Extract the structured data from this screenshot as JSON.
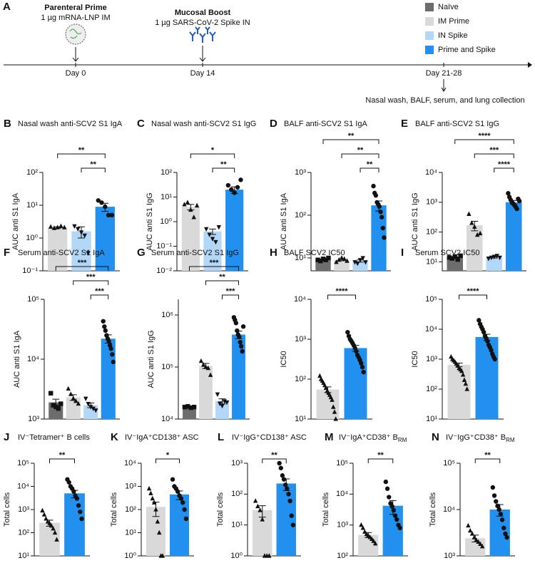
{
  "schematic": {
    "panel": "A",
    "prime": {
      "title": "Parenteral Prime",
      "detail": "1 µg mRNA-LNP IM",
      "day": "Day 0"
    },
    "boost": {
      "title": "Mucosal Boost",
      "detail": "1 µg SARS-CoV-2 Spike IN",
      "day": "Day 14"
    },
    "collection": {
      "day": "Day 21-28",
      "detail": "Nasal wash, BALF, serum, and lung collection"
    },
    "legend": [
      {
        "name": "Naïve",
        "color": "#6d6d6d"
      },
      {
        "name": "IM Prime",
        "color": "#d9d9d9"
      },
      {
        "name": "IN Spike",
        "color": "#b3d7f7"
      },
      {
        "name": "Prime and Spike",
        "color": "#2190ee"
      }
    ]
  },
  "chart_data": [
    {
      "type": "bar",
      "panel": "B",
      "title": "Nasal wash anti-SCV2 S1 IgA",
      "ylabel": "AUC anti S1 IgA",
      "log_y": true,
      "ylim": [
        0.1,
        100
      ],
      "yticks": [
        {
          "value": 0.1,
          "label": "10⁻¹"
        },
        {
          "value": 1,
          "label": "10⁰"
        },
        {
          "value": 10,
          "label": "10¹"
        },
        {
          "value": 100,
          "label": "10²"
        }
      ],
      "colors": [
        "#d9d9d9",
        "#b3d7f7",
        "#2190ee"
      ],
      "markers": [
        "triangle",
        "triangle-down",
        "circle"
      ],
      "values": [
        2.1,
        1.6,
        9
      ],
      "errors": [
        0.1,
        0.6,
        2.5
      ],
      "points": [
        [
          2.2,
          2.0,
          2.1,
          2.3,
          2.1
        ],
        [
          2.3,
          1.9,
          1.5,
          1.2,
          0.35
        ],
        [
          14,
          12,
          9,
          5,
          5
        ]
      ],
      "significance": [
        {
          "between": [
            0,
            2
          ],
          "label": "**"
        },
        {
          "between": [
            1,
            2
          ],
          "label": "**"
        }
      ]
    },
    {
      "type": "bar",
      "panel": "C",
      "title": "Nasal wash anti-SCV2 S1 IgG",
      "ylabel": "AUC anti S1 IgG",
      "log_y": true,
      "ylim": [
        0.01,
        100
      ],
      "yticks": [
        {
          "value": 0.01,
          "label": "10⁻²"
        },
        {
          "value": 0.1,
          "label": "10⁻¹"
        },
        {
          "value": 1,
          "label": "10⁰"
        },
        {
          "value": 10,
          "label": "10¹"
        },
        {
          "value": 100,
          "label": "10²"
        }
      ],
      "colors": [
        "#d9d9d9",
        "#b3d7f7",
        "#2190ee"
      ],
      "markers": [
        "triangle",
        "triangle-down",
        "circle"
      ],
      "values": [
        4,
        0.4,
        20
      ],
      "errors": [
        1.0,
        0.1,
        6
      ],
      "points": [
        [
          5,
          6,
          3,
          1.5,
          4.5
        ],
        [
          0.5,
          0.3,
          0.2,
          0.15,
          0.6
        ],
        [
          30,
          20,
          15,
          25,
          50
        ]
      ],
      "significance": [
        {
          "between": [
            0,
            2
          ],
          "label": "*"
        },
        {
          "between": [
            1,
            2
          ],
          "label": "**"
        }
      ]
    },
    {
      "type": "bar",
      "panel": "D",
      "title": "BALF anti-SCV2 S1 IgA",
      "ylabel": "AUC anti S1 IgA",
      "log_y": true,
      "ylim": [
        5,
        1000
      ],
      "yticks": [
        {
          "value": 10,
          "label": "10¹"
        },
        {
          "value": 100,
          "label": "10²"
        },
        {
          "value": 1000,
          "label": "10³"
        }
      ],
      "colors": [
        "#6d6d6d",
        "#d9d9d9",
        "#b3d7f7",
        "#2190ee"
      ],
      "markers": [
        "square",
        "triangle",
        "triangle-down",
        "circle"
      ],
      "values": [
        9,
        9,
        8.5,
        170
      ],
      "errors": [
        0.3,
        0.4,
        0.5,
        45
      ],
      "points": [
        [
          9,
          8.5,
          9.5,
          9,
          10
        ],
        [
          8,
          9,
          10,
          9.5,
          8.5
        ],
        [
          8,
          7.5,
          9,
          10,
          8
        ],
        [
          480,
          330,
          290,
          200,
          180,
          160,
          120,
          90,
          50,
          30
        ]
      ],
      "significance": [
        {
          "between": [
            0,
            3
          ],
          "label": "**"
        },
        {
          "between": [
            1,
            3
          ],
          "label": "**"
        },
        {
          "between": [
            2,
            3
          ],
          "label": "**"
        }
      ]
    },
    {
      "type": "bar",
      "panel": "E",
      "title": "BALF anti-SCV2 S1 IgG",
      "ylabel": "AUC anti S1 IgG",
      "log_y": true,
      "ylim": [
        5,
        10000
      ],
      "yticks": [
        {
          "value": 10,
          "label": "10¹"
        },
        {
          "value": 100,
          "label": "10²"
        },
        {
          "value": 1000,
          "label": "10³"
        },
        {
          "value": 10000,
          "label": "10⁴"
        }
      ],
      "colors": [
        "#6d6d6d",
        "#d9d9d9",
        "#b3d7f7",
        "#2190ee"
      ],
      "markers": [
        "square",
        "triangle",
        "triangle-down",
        "circle"
      ],
      "values": [
        14,
        170,
        14,
        1000
      ],
      "errors": [
        0.6,
        60,
        0.6,
        150
      ],
      "points": [
        [
          14,
          13,
          15,
          12,
          16
        ],
        [
          400,
          200,
          150,
          80,
          90
        ],
        [
          13,
          14,
          15,
          16,
          14
        ],
        [
          2000,
          1500,
          1200,
          1000,
          900,
          800,
          700,
          600,
          1300,
          1100
        ]
      ],
      "significance": [
        {
          "between": [
            0,
            3
          ],
          "label": "****"
        },
        {
          "between": [
            1,
            3
          ],
          "label": "***"
        },
        {
          "between": [
            2,
            3
          ],
          "label": "****"
        }
      ]
    },
    {
      "type": "bar",
      "panel": "F",
      "title": "Serum anti-SCV2 S1 IgA",
      "ylabel": "AUC anti S1 IgA",
      "log_y": true,
      "ylim": [
        1000,
        100000
      ],
      "yticks": [
        {
          "value": 1000,
          "label": "10³"
        },
        {
          "value": 10000,
          "label": "10⁴"
        },
        {
          "value": 100000,
          "label": "10⁵"
        }
      ],
      "colors": [
        "#6d6d6d",
        "#d9d9d9",
        "#b3d7f7",
        "#2190ee"
      ],
      "markers": [
        "square",
        "triangle",
        "triangle-down",
        "circle"
      ],
      "values": [
        1900,
        2300,
        1700,
        22000
      ],
      "errors": [
        250,
        250,
        150,
        3500
      ],
      "points": [
        [
          2700,
          1700,
          1600,
          1500,
          1800
        ],
        [
          3200,
          2600,
          2200,
          2000,
          1800
        ],
        [
          2200,
          1800,
          1600,
          1500,
          1400
        ],
        [
          43000,
          35000,
          30000,
          25000,
          22000,
          20000,
          17000,
          15000,
          12000,
          9000
        ]
      ],
      "significance": [
        {
          "between": [
            0,
            3
          ],
          "label": "***"
        },
        {
          "between": [
            1,
            3
          ],
          "label": "***"
        },
        {
          "between": [
            2,
            3
          ],
          "label": "***"
        }
      ]
    },
    {
      "type": "bar",
      "panel": "G",
      "title": "Serum anti-SCV2 S1 IgG",
      "ylabel": "AUC anti S1 IgG",
      "log_y": true,
      "ylim": [
        10000,
        2000000
      ],
      "yticks": [
        {
          "value": 10000,
          "label": "10⁴"
        },
        {
          "value": 100000,
          "label": "10⁵"
        },
        {
          "value": 1000000,
          "label": "10⁶"
        }
      ],
      "colors": [
        "#6d6d6d",
        "#d9d9d9",
        "#b3d7f7",
        "#2190ee"
      ],
      "markers": [
        "square",
        "triangle",
        "triangle-down",
        "circle"
      ],
      "values": [
        17000,
        105000,
        22000,
        420000
      ],
      "errors": [
        200,
        12000,
        2500,
        70000
      ],
      "points": [
        [
          17000,
          17500,
          16500,
          17000
        ],
        [
          130000,
          110000,
          100000,
          95000,
          70000
        ],
        [
          30000,
          20000,
          18000,
          22000,
          21000
        ],
        [
          900000,
          800000,
          700000,
          500000,
          420000,
          380000,
          300000,
          250000,
          200000,
          600000
        ]
      ],
      "significance": [
        {
          "between": [
            0,
            3
          ],
          "label": "***"
        },
        {
          "between": [
            1,
            3
          ],
          "label": "**"
        },
        {
          "between": [
            2,
            3
          ],
          "label": "***"
        }
      ]
    },
    {
      "type": "bar",
      "panel": "H",
      "title": "BALF SCV2 IC50",
      "ylabel": "IC50",
      "log_y": true,
      "ylim": [
        10,
        10000
      ],
      "yticks": [
        {
          "value": 10,
          "label": "10¹"
        },
        {
          "value": 100,
          "label": "10²"
        },
        {
          "value": 1000,
          "label": "10³"
        },
        {
          "value": 10000,
          "label": "10⁴"
        }
      ],
      "colors": [
        "#d9d9d9",
        "#2190ee"
      ],
      "markers": [
        "triangle",
        "circle"
      ],
      "values": [
        55,
        600
      ],
      "errors": [
        9,
        100
      ],
      "points": [
        [
          120,
          100,
          90,
          80,
          70,
          60,
          50,
          45,
          40,
          35,
          30,
          20,
          15,
          10
        ],
        [
          1500,
          1200,
          1000,
          900,
          800,
          700,
          600,
          500,
          400,
          350,
          300,
          250,
          200,
          150
        ]
      ],
      "significance": [
        {
          "between": [
            0,
            1
          ],
          "label": "****"
        }
      ]
    },
    {
      "type": "bar",
      "panel": "I",
      "title": "Serum SCV2 IC50",
      "ylabel": "IC50",
      "log_y": true,
      "ylim": [
        10,
        100000
      ],
      "yticks": [
        {
          "value": 10,
          "label": "10¹"
        },
        {
          "value": 100,
          "label": "10²"
        },
        {
          "value": 1000,
          "label": "10³"
        },
        {
          "value": 10000,
          "label": "10⁴"
        },
        {
          "value": 100000,
          "label": "10⁵"
        }
      ],
      "colors": [
        "#d9d9d9",
        "#2190ee"
      ],
      "markers": [
        "triangle",
        "circle"
      ],
      "values": [
        650,
        5500
      ],
      "errors": [
        90,
        1300
      ],
      "points": [
        [
          1200,
          1000,
          900,
          800,
          700,
          600,
          500,
          450,
          400,
          300,
          200,
          150,
          100
        ],
        [
          20000,
          15000,
          12000,
          10000,
          8000,
          6000,
          5000,
          4000,
          3000,
          2500,
          2000,
          1500,
          1200,
          1000
        ]
      ],
      "significance": [
        {
          "between": [
            0,
            1
          ],
          "label": "****"
        }
      ]
    },
    {
      "type": "bar",
      "panel": "J",
      "title": "IV⁻Tetramer⁺ B cells",
      "ylabel": "Total cells",
      "log_y": true,
      "ylim": [
        10,
        100000
      ],
      "yticks": [
        {
          "value": 10,
          "label": "10¹"
        },
        {
          "value": 100,
          "label": "10²"
        },
        {
          "value": 1000,
          "label": "10³"
        },
        {
          "value": 10000,
          "label": "10⁴"
        },
        {
          "value": 100000,
          "label": "10⁵"
        }
      ],
      "colors": [
        "#d9d9d9",
        "#2190ee"
      ],
      "markers": [
        "triangle",
        "circle"
      ],
      "values": [
        270,
        5000
      ],
      "errors": [
        80,
        1800
      ],
      "points": [
        [
          900,
          600,
          400,
          300,
          250,
          200,
          150,
          100,
          50
        ],
        [
          20000,
          15000,
          10000,
          8000,
          6000,
          4000,
          3000,
          1500,
          800,
          400
        ]
      ],
      "significance": [
        {
          "between": [
            0,
            1
          ],
          "label": "**"
        }
      ]
    },
    {
      "type": "bar",
      "panel": "K",
      "title": "IV⁻IgA⁺CD138⁺ ASC",
      "ylabel": "Total cells",
      "log_y": true,
      "ylim": [
        1,
        10000
      ],
      "yticks": [
        {
          "value": 1,
          "label": "10⁰"
        },
        {
          "value": 10,
          "label": "10¹"
        },
        {
          "value": 100,
          "label": "10²"
        },
        {
          "value": 1000,
          "label": "10³"
        },
        {
          "value": 10000,
          "label": "10⁴"
        }
      ],
      "colors": [
        "#d9d9d9",
        "#2190ee"
      ],
      "markers": [
        "triangle",
        "circle"
      ],
      "values": [
        130,
        450
      ],
      "errors": [
        80,
        180
      ],
      "points": [
        [
          800,
          500,
          300,
          200,
          100,
          30,
          10,
          1,
          1
        ],
        [
          2000,
          1000,
          800,
          600,
          400,
          300,
          200,
          100,
          40
        ]
      ],
      "significance": [
        {
          "between": [
            0,
            1
          ],
          "label": "*"
        }
      ]
    },
    {
      "type": "bar",
      "panel": "L",
      "title": "IV⁻IgG⁺CD138⁺ ASC",
      "ylabel": "Total cells",
      "log_y": true,
      "ylim": [
        1,
        1000
      ],
      "yticks": [
        {
          "value": 1,
          "label": "10⁰"
        },
        {
          "value": 10,
          "label": "10¹"
        },
        {
          "value": 100,
          "label": "10²"
        },
        {
          "value": 1000,
          "label": "10³"
        }
      ],
      "colors": [
        "#d9d9d9",
        "#2190ee"
      ],
      "markers": [
        "triangle",
        "circle"
      ],
      "values": [
        30,
        220
      ],
      "errors": [
        12,
        90
      ],
      "points": [
        [
          60,
          40,
          30,
          15,
          1,
          1,
          1
        ],
        [
          1000,
          700,
          400,
          300,
          200,
          150,
          100,
          60,
          20,
          10
        ]
      ],
      "significance": [
        {
          "between": [
            0,
            1
          ],
          "label": "**"
        }
      ]
    },
    {
      "type": "bar",
      "panel": "M",
      "title": "IV⁻IgA⁺CD38⁺ B",
      "title_sub": "RM",
      "ylabel": "Total cells",
      "log_y": true,
      "ylim": [
        100,
        100000
      ],
      "yticks": [
        {
          "value": 100,
          "label": "10²"
        },
        {
          "value": 1000,
          "label": "10³"
        },
        {
          "value": 10000,
          "label": "10⁴"
        },
        {
          "value": 100000,
          "label": "10⁵"
        }
      ],
      "colors": [
        "#d9d9d9",
        "#2190ee"
      ],
      "markers": [
        "triangle",
        "circle"
      ],
      "values": [
        480,
        4200
      ],
      "errors": [
        90,
        2000
      ],
      "points": [
        [
          1000,
          800,
          600,
          500,
          450,
          400,
          350,
          300,
          250
        ],
        [
          25000,
          15000,
          8000,
          5000,
          4000,
          3000,
          2000,
          1500,
          1000,
          800
        ]
      ],
      "significance": [
        {
          "between": [
            0,
            1
          ],
          "label": "**"
        }
      ]
    },
    {
      "type": "bar",
      "panel": "N",
      "title": "IV⁻IgG⁺CD38⁺ B",
      "title_sub": "RM",
      "ylabel": "Total cells",
      "log_y": true,
      "ylim": [
        1000,
        100000
      ],
      "yticks": [
        {
          "value": 1000,
          "label": "10³"
        },
        {
          "value": 10000,
          "label": "10⁴"
        },
        {
          "value": 100000,
          "label": "10⁵"
        }
      ],
      "colors": [
        "#d9d9d9",
        "#2190ee"
      ],
      "markers": [
        "triangle",
        "circle"
      ],
      "values": [
        2400,
        10000
      ],
      "errors": [
        400,
        2800
      ],
      "points": [
        [
          4500,
          3500,
          3000,
          2500,
          2200,
          2000,
          1800,
          1600
        ],
        [
          30000,
          20000,
          15000,
          12000,
          10000,
          8000,
          6000,
          4000,
          3000,
          2500
        ]
      ],
      "significance": [
        {
          "between": [
            0,
            1
          ],
          "label": "**"
        }
      ]
    }
  ]
}
